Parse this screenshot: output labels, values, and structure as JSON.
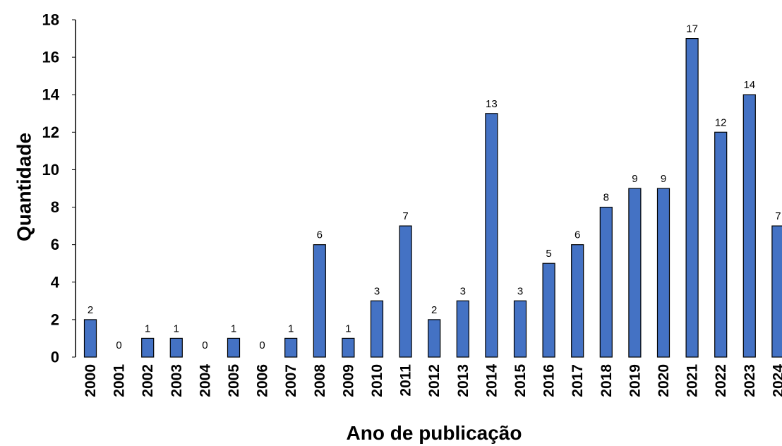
{
  "chart_data": {
    "type": "bar",
    "title": "",
    "xlabel": "Ano de publicação",
    "ylabel": "Quantidade",
    "ylim": [
      0,
      18
    ],
    "yticks": [
      0,
      2,
      4,
      6,
      8,
      10,
      12,
      14,
      16,
      18
    ],
    "grid": false,
    "bar_color": "#4472C4",
    "bar_edge_color": "#000000",
    "categories": [
      "2000",
      "2001",
      "2002",
      "2003",
      "2004",
      "2005",
      "2006",
      "2007",
      "2008",
      "2009",
      "2010",
      "2011",
      "2012",
      "2013",
      "2014",
      "2015",
      "2016",
      "2017",
      "2018",
      "2019",
      "2020",
      "2021",
      "2022",
      "2023",
      "2024"
    ],
    "values": [
      2,
      0,
      1,
      1,
      0,
      1,
      0,
      1,
      6,
      1,
      3,
      7,
      2,
      3,
      13,
      3,
      5,
      6,
      8,
      9,
      9,
      17,
      12,
      14,
      7
    ]
  }
}
